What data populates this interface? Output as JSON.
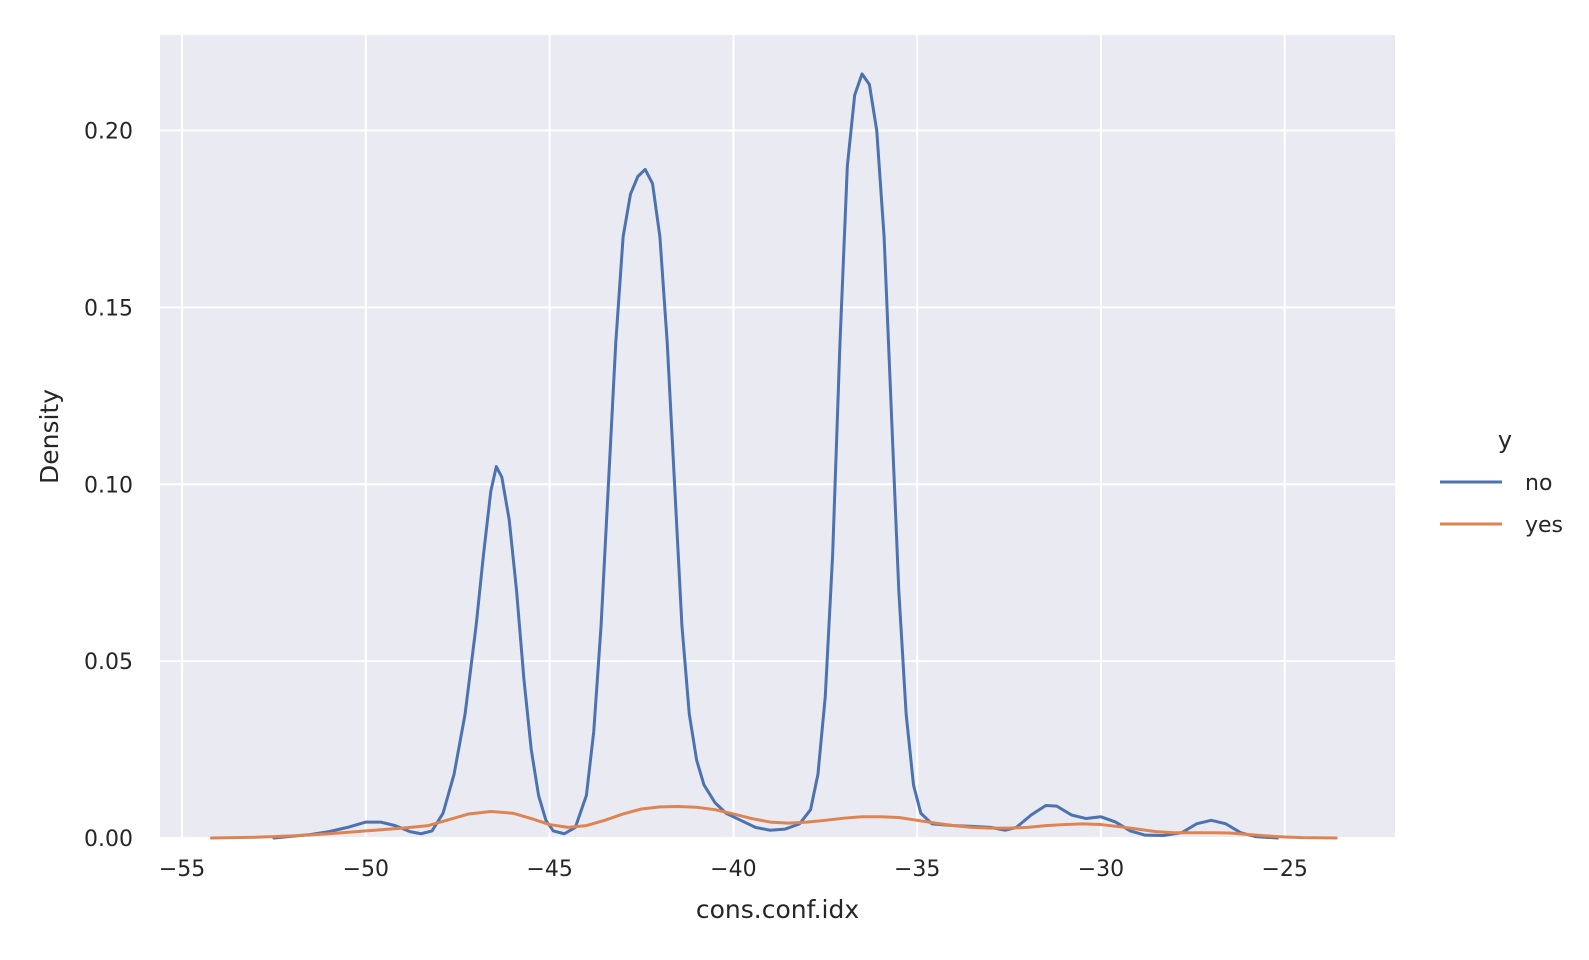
{
  "chart_data": {
    "type": "line",
    "xlabel": "cons.conf.idx",
    "ylabel": "Density",
    "xlim": [
      -55.6,
      -22.0
    ],
    "ylim": [
      0.0,
      0.227
    ],
    "xticks": [
      -55,
      -50,
      -45,
      -40,
      -35,
      -30,
      -25
    ],
    "xtick_labels": [
      "−55",
      "−50",
      "−45",
      "−40",
      "−35",
      "−30",
      "−25"
    ],
    "yticks": [
      0.0,
      0.05,
      0.1,
      0.15,
      0.2
    ],
    "ytick_labels": [
      "0.00",
      "0.05",
      "0.10",
      "0.15",
      "0.20"
    ],
    "grid": true,
    "background": "#eaeaf2",
    "legend": {
      "title": "y",
      "placement": "right"
    },
    "series": [
      {
        "name": "no",
        "color": "#4c72b0",
        "points": [
          [
            -52.5,
            0.0
          ],
          [
            -51.5,
            0.001
          ],
          [
            -51.0,
            0.0018
          ],
          [
            -50.5,
            0.003
          ],
          [
            -50.0,
            0.0045
          ],
          [
            -49.6,
            0.0045
          ],
          [
            -49.2,
            0.0035
          ],
          [
            -48.8,
            0.0018
          ],
          [
            -48.5,
            0.0012
          ],
          [
            -48.2,
            0.002
          ],
          [
            -47.9,
            0.007
          ],
          [
            -47.6,
            0.018
          ],
          [
            -47.3,
            0.035
          ],
          [
            -47.0,
            0.06
          ],
          [
            -46.8,
            0.08
          ],
          [
            -46.6,
            0.098
          ],
          [
            -46.45,
            0.105
          ],
          [
            -46.3,
            0.102
          ],
          [
            -46.1,
            0.09
          ],
          [
            -45.9,
            0.07
          ],
          [
            -45.7,
            0.045
          ],
          [
            -45.5,
            0.025
          ],
          [
            -45.3,
            0.012
          ],
          [
            -45.1,
            0.005
          ],
          [
            -44.9,
            0.002
          ],
          [
            -44.6,
            0.0012
          ],
          [
            -44.3,
            0.003
          ],
          [
            -44.0,
            0.012
          ],
          [
            -43.8,
            0.03
          ],
          [
            -43.6,
            0.06
          ],
          [
            -43.4,
            0.1
          ],
          [
            -43.2,
            0.14
          ],
          [
            -43.0,
            0.17
          ],
          [
            -42.8,
            0.182
          ],
          [
            -42.6,
            0.187
          ],
          [
            -42.4,
            0.189
          ],
          [
            -42.2,
            0.185
          ],
          [
            -42.0,
            0.17
          ],
          [
            -41.8,
            0.14
          ],
          [
            -41.6,
            0.1
          ],
          [
            -41.4,
            0.06
          ],
          [
            -41.2,
            0.035
          ],
          [
            -41.0,
            0.022
          ],
          [
            -40.8,
            0.015
          ],
          [
            -40.5,
            0.01
          ],
          [
            -40.2,
            0.007
          ],
          [
            -39.8,
            0.005
          ],
          [
            -39.4,
            0.003
          ],
          [
            -39.0,
            0.0022
          ],
          [
            -38.6,
            0.0025
          ],
          [
            -38.2,
            0.004
          ],
          [
            -37.9,
            0.008
          ],
          [
            -37.7,
            0.018
          ],
          [
            -37.5,
            0.04
          ],
          [
            -37.3,
            0.08
          ],
          [
            -37.1,
            0.14
          ],
          [
            -36.9,
            0.19
          ],
          [
            -36.7,
            0.21
          ],
          [
            -36.5,
            0.216
          ],
          [
            -36.3,
            0.213
          ],
          [
            -36.1,
            0.2
          ],
          [
            -35.9,
            0.17
          ],
          [
            -35.7,
            0.12
          ],
          [
            -35.5,
            0.07
          ],
          [
            -35.3,
            0.035
          ],
          [
            -35.1,
            0.015
          ],
          [
            -34.9,
            0.007
          ],
          [
            -34.6,
            0.004
          ],
          [
            -34.0,
            0.0035
          ],
          [
            -33.5,
            0.0033
          ],
          [
            -33.0,
            0.003
          ],
          [
            -32.6,
            0.0022
          ],
          [
            -32.3,
            0.003
          ],
          [
            -31.9,
            0.0065
          ],
          [
            -31.5,
            0.0092
          ],
          [
            -31.2,
            0.009
          ],
          [
            -30.8,
            0.0065
          ],
          [
            -30.4,
            0.0055
          ],
          [
            -30.0,
            0.006
          ],
          [
            -29.6,
            0.0045
          ],
          [
            -29.2,
            0.002
          ],
          [
            -28.8,
            0.0008
          ],
          [
            -28.3,
            0.0007
          ],
          [
            -27.8,
            0.0015
          ],
          [
            -27.4,
            0.004
          ],
          [
            -27.0,
            0.005
          ],
          [
            -26.6,
            0.004
          ],
          [
            -26.2,
            0.0015
          ],
          [
            -25.8,
            0.0004
          ],
          [
            -25.2,
            0.0
          ]
        ]
      },
      {
        "name": "yes",
        "color": "#dd8452",
        "points": [
          [
            -54.2,
            0.0
          ],
          [
            -53.0,
            0.0002
          ],
          [
            -52.0,
            0.0006
          ],
          [
            -51.0,
            0.0012
          ],
          [
            -50.0,
            0.002
          ],
          [
            -49.0,
            0.0028
          ],
          [
            -48.3,
            0.0035
          ],
          [
            -47.8,
            0.005
          ],
          [
            -47.2,
            0.0068
          ],
          [
            -46.6,
            0.0075
          ],
          [
            -46.0,
            0.007
          ],
          [
            -45.5,
            0.0055
          ],
          [
            -45.0,
            0.0038
          ],
          [
            -44.5,
            0.003
          ],
          [
            -44.0,
            0.0035
          ],
          [
            -43.5,
            0.005
          ],
          [
            -43.0,
            0.0068
          ],
          [
            -42.5,
            0.0082
          ],
          [
            -42.0,
            0.0088
          ],
          [
            -41.5,
            0.0089
          ],
          [
            -41.0,
            0.0087
          ],
          [
            -40.5,
            0.008
          ],
          [
            -40.0,
            0.0068
          ],
          [
            -39.5,
            0.0055
          ],
          [
            -39.0,
            0.0045
          ],
          [
            -38.5,
            0.0042
          ],
          [
            -38.0,
            0.0045
          ],
          [
            -37.5,
            0.005
          ],
          [
            -37.0,
            0.0056
          ],
          [
            -36.5,
            0.006
          ],
          [
            -36.0,
            0.006
          ],
          [
            -35.5,
            0.0058
          ],
          [
            -35.0,
            0.005
          ],
          [
            -34.5,
            0.0042
          ],
          [
            -34.0,
            0.0035
          ],
          [
            -33.5,
            0.003
          ],
          [
            -33.0,
            0.0028
          ],
          [
            -32.5,
            0.0028
          ],
          [
            -32.0,
            0.003
          ],
          [
            -31.5,
            0.0035
          ],
          [
            -31.0,
            0.0038
          ],
          [
            -30.5,
            0.004
          ],
          [
            -30.0,
            0.0038
          ],
          [
            -29.5,
            0.0032
          ],
          [
            -29.0,
            0.0025
          ],
          [
            -28.5,
            0.0018
          ],
          [
            -28.0,
            0.0015
          ],
          [
            -27.5,
            0.0015
          ],
          [
            -27.0,
            0.0015
          ],
          [
            -26.5,
            0.0014
          ],
          [
            -26.0,
            0.001
          ],
          [
            -25.5,
            0.0006
          ],
          [
            -25.0,
            0.0003
          ],
          [
            -24.5,
            0.0001
          ],
          [
            -23.6,
            0.0
          ]
        ]
      }
    ]
  }
}
